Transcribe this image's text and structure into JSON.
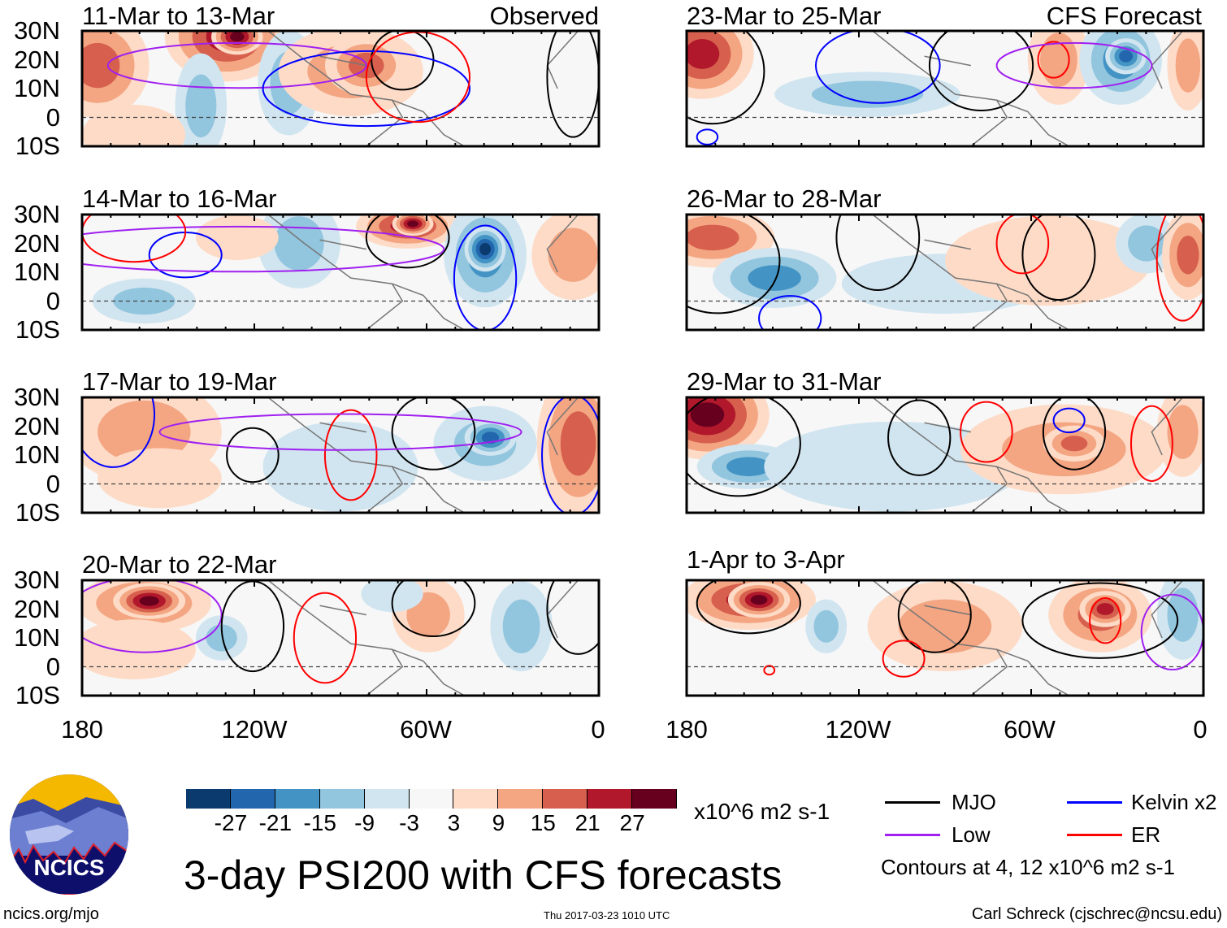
{
  "panels": {
    "left": [
      {
        "title": "11-Mar to 13-Mar",
        "tag": "Observed"
      },
      {
        "title": "14-Mar to 16-Mar"
      },
      {
        "title": "17-Mar to 19-Mar"
      },
      {
        "title": "20-Mar to 22-Mar"
      }
    ],
    "right": [
      {
        "title": "23-Mar to 25-Mar",
        "tag": "CFS Forecast"
      },
      {
        "title": "26-Mar to 28-Mar"
      },
      {
        "title": "29-Mar to 31-Mar"
      },
      {
        "title": "1-Apr to 3-Apr"
      }
    ]
  },
  "axes": {
    "lat_labels": [
      "30N",
      "20N",
      "10N",
      "0",
      "10S"
    ],
    "lon_labels": [
      "180",
      "120W",
      "60W",
      "0"
    ]
  },
  "colorbar": {
    "colors": [
      "#0b3b6e",
      "#2266ad",
      "#4394c4",
      "#92c5de",
      "#d1e5f0",
      "#f7f7f7",
      "#fddbc7",
      "#f4a582",
      "#d6604d",
      "#b2182b",
      "#67001f"
    ],
    "labels": [
      "-27",
      "-21",
      "-15",
      "-9",
      "-3",
      "3",
      "9",
      "15",
      "21",
      "27"
    ],
    "units": "x10^6 m2 s-1"
  },
  "legend": {
    "items": [
      {
        "label": "MJO",
        "color": "#000000"
      },
      {
        "label": "Kelvin x2",
        "color": "#0000ff"
      },
      {
        "label": "Low",
        "color": "#a020f0"
      },
      {
        "label": "ER",
        "color": "#ff0000"
      }
    ],
    "note": "Contours at 4, 12 x10^6 m2 s-1"
  },
  "logo_text": "NCICS",
  "title": "3-day PSI200 with CFS forecasts",
  "footer": {
    "url": "ncics.org/mjo",
    "timestamp": "Thu 2017-03-23 1010 UTC",
    "author": "Carl Schreck (cjschrec@ncsu.edu)"
  }
}
